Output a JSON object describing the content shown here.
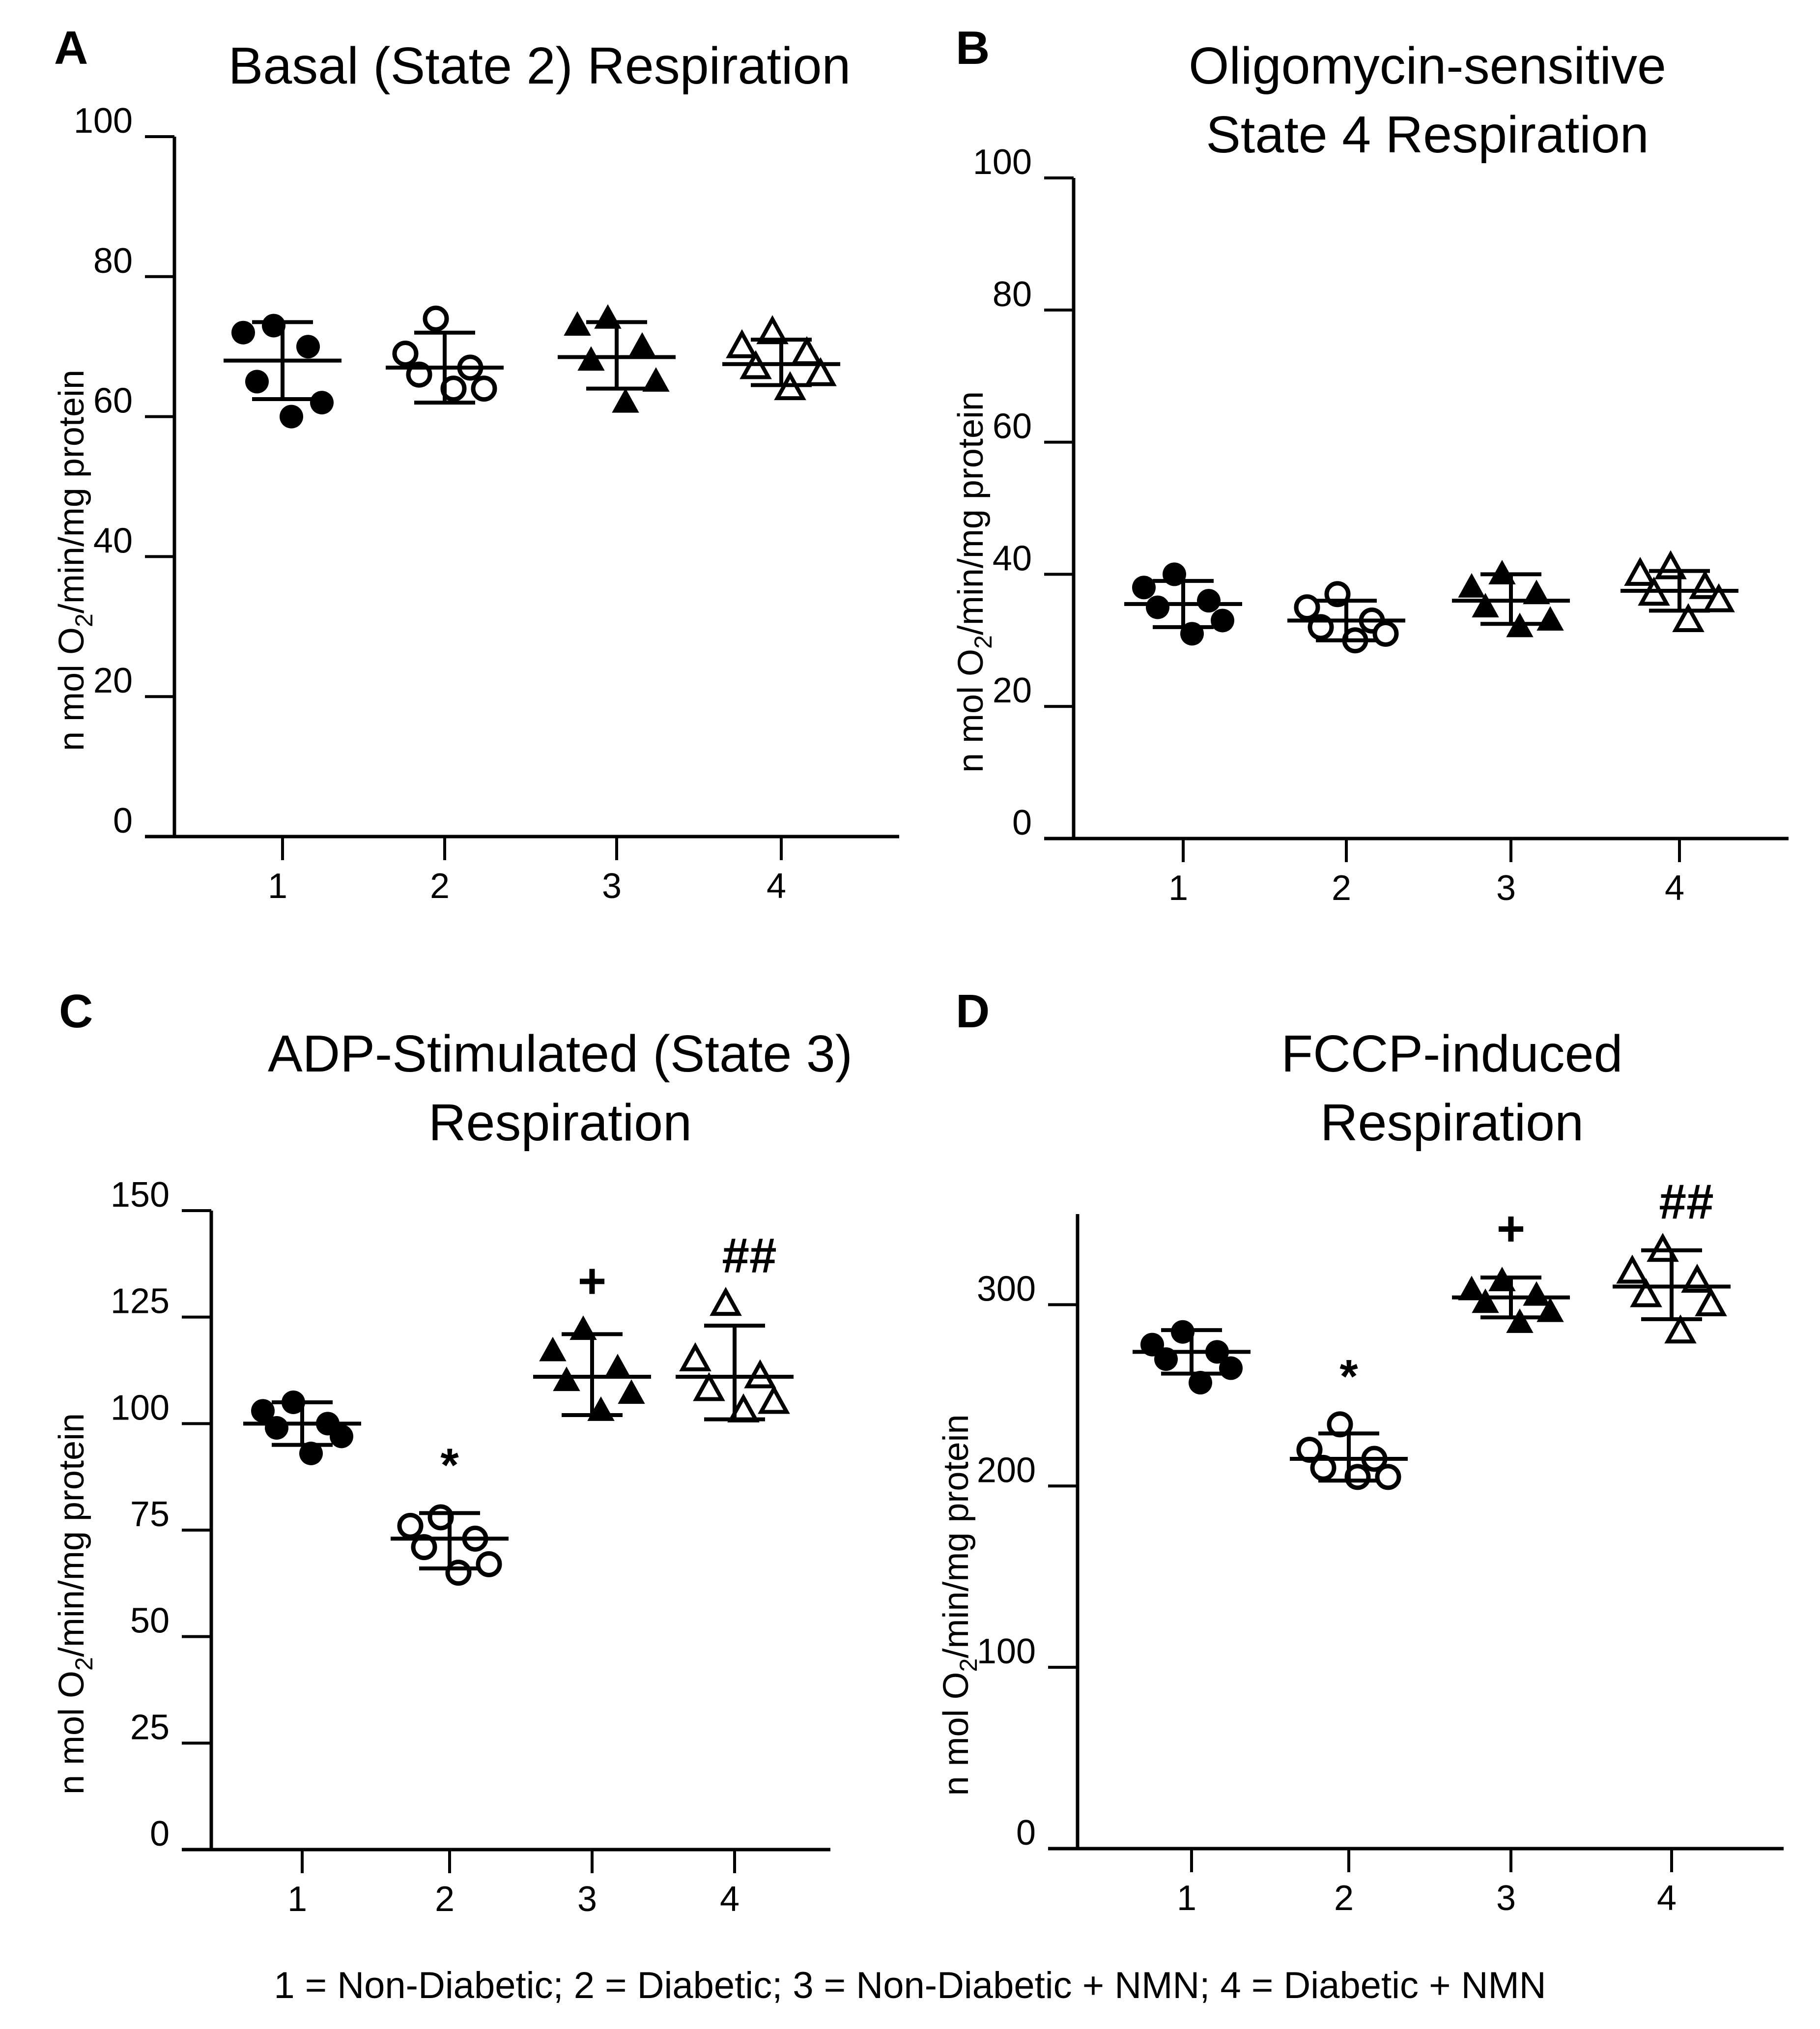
{
  "caption": "1 = Non-Diabetic; 2 = Diabetic; 3 = Non-Diabetic + NMN; 4 = Diabetic + NMN",
  "colors": {
    "ink": "#000000",
    "background": "#ffffff"
  },
  "chart_data": [
    {
      "id": "A",
      "type": "scatter",
      "panel_label": "A",
      "title_lines": [
        "Basal (State 2) Respiration"
      ],
      "ylabel": "n mol O2/min/mg protein",
      "xlabel": "",
      "ylim": [
        0,
        100
      ],
      "yticks": [
        0,
        20,
        40,
        60,
        80,
        100
      ],
      "categories": [
        "1",
        "2",
        "3",
        "4"
      ],
      "grid": false,
      "groups": [
        {
          "x": "1",
          "marker": "filled-circle",
          "points": [
            73,
            72,
            70,
            65,
            62,
            60
          ],
          "mean": 68,
          "error": [
            62.5,
            73.5
          ],
          "annotation": ""
        },
        {
          "x": "2",
          "marker": "open-circle",
          "points": [
            74,
            69,
            67,
            66,
            64,
            64
          ],
          "mean": 67,
          "error": [
            62,
            72
          ],
          "annotation": ""
        },
        {
          "x": "3",
          "marker": "filled-triangle",
          "points": [
            74,
            73,
            70,
            68,
            65,
            62
          ],
          "mean": 68.5,
          "error": [
            64,
            73.5
          ],
          "annotation": ""
        },
        {
          "x": "4",
          "marker": "open-triangle",
          "points": [
            72,
            70,
            69,
            67,
            66,
            64
          ],
          "mean": 67.5,
          "error": [
            64.5,
            71
          ],
          "annotation": ""
        }
      ]
    },
    {
      "id": "B",
      "type": "scatter",
      "panel_label": "B",
      "title_lines": [
        "Oligomycin-sensitive",
        "State 4 Respiration"
      ],
      "ylabel": "n mol O2/min/mg protein",
      "xlabel": "",
      "ylim": [
        0,
        100
      ],
      "yticks": [
        0,
        20,
        40,
        60,
        80,
        100
      ],
      "categories": [
        "1",
        "2",
        "3",
        "4"
      ],
      "grid": false,
      "groups": [
        {
          "x": "1",
          "marker": "filled-circle",
          "points": [
            40,
            38,
            36,
            35,
            33,
            31
          ],
          "mean": 35.5,
          "error": [
            32,
            39
          ],
          "annotation": ""
        },
        {
          "x": "2",
          "marker": "open-circle",
          "points": [
            37,
            35,
            33,
            32,
            31,
            30
          ],
          "mean": 33,
          "error": [
            30,
            36
          ],
          "annotation": ""
        },
        {
          "x": "3",
          "marker": "filled-triangle",
          "points": [
            40,
            38,
            37,
            35,
            33,
            32
          ],
          "mean": 36,
          "error": [
            32.5,
            40
          ],
          "annotation": ""
        },
        {
          "x": "4",
          "marker": "open-triangle",
          "points": [
            41,
            40,
            38,
            37,
            36,
            33
          ],
          "mean": 37.5,
          "error": [
            34.5,
            40.5
          ],
          "annotation": ""
        }
      ]
    },
    {
      "id": "C",
      "type": "scatter",
      "panel_label": "C",
      "title_lines": [
        "ADP-Stimulated (State 3)",
        "Respiration"
      ],
      "ylabel": "n mol O2/min/mg protein",
      "xlabel": "",
      "ylim": [
        0,
        150
      ],
      "yticks": [
        0,
        25,
        50,
        75,
        100,
        125,
        150
      ],
      "categories": [
        "1",
        "2",
        "3",
        "4"
      ],
      "grid": false,
      "groups": [
        {
          "x": "1",
          "marker": "filled-circle",
          "points": [
            105,
            103,
            100,
            99,
            97,
            93
          ],
          "mean": 100,
          "error": [
            95,
            105
          ],
          "annotation": ""
        },
        {
          "x": "2",
          "marker": "open-circle",
          "points": [
            78,
            76,
            73,
            71,
            67,
            65
          ],
          "mean": 73,
          "error": [
            66,
            79
          ],
          "annotation": "*"
        },
        {
          "x": "3",
          "marker": "filled-triangle",
          "points": [
            122,
            117,
            113,
            110,
            107,
            103
          ],
          "mean": 111,
          "error": [
            102,
            121
          ],
          "annotation": "+"
        },
        {
          "x": "4",
          "marker": "open-triangle",
          "points": [
            128,
            115,
            111,
            108,
            105,
            103
          ],
          "mean": 111,
          "error": [
            101,
            123
          ],
          "annotation": "##"
        }
      ]
    },
    {
      "id": "D",
      "type": "scatter",
      "panel_label": "D",
      "title_lines": [
        "FCCP-induced",
        "Respiration"
      ],
      "ylabel": "n mol O2/min/mg protein",
      "xlabel": "",
      "ylim": [
        0,
        350
      ],
      "yticks": [
        0,
        100,
        200,
        300
      ],
      "categories": [
        "1",
        "2",
        "3",
        "4"
      ],
      "grid": false,
      "groups": [
        {
          "x": "1",
          "marker": "filled-circle",
          "points": [
            285,
            278,
            274,
            270,
            265,
            257
          ],
          "mean": 274,
          "error": [
            262,
            286
          ],
          "annotation": ""
        },
        {
          "x": "2",
          "marker": "open-circle",
          "points": [
            234,
            220,
            215,
            210,
            205,
            205
          ],
          "mean": 215,
          "error": [
            203,
            229
          ],
          "annotation": "*"
        },
        {
          "x": "3",
          "marker": "filled-triangle",
          "points": [
            313,
            308,
            305,
            301,
            296,
            290
          ],
          "mean": 304,
          "error": [
            293,
            315
          ],
          "annotation": "+"
        },
        {
          "x": "4",
          "marker": "open-triangle",
          "points": [
            330,
            318,
            313,
            305,
            300,
            285
          ],
          "mean": 310,
          "error": [
            292,
            330
          ],
          "annotation": "##"
        }
      ]
    }
  ]
}
